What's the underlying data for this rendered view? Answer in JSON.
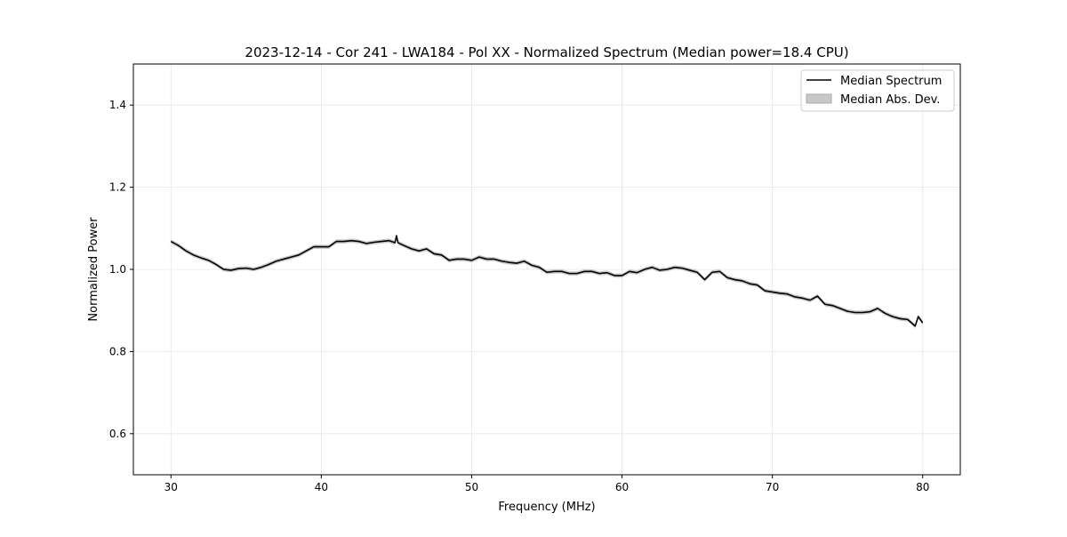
{
  "chart_data": {
    "type": "line",
    "title": "2023-12-14 - Cor 241 - LWA184 - Pol XX - Normalized Spectrum (Median power=18.4 CPU)",
    "xlabel": "Frequency (MHz)",
    "ylabel": "Normalized Power",
    "xlim": [
      27.5,
      82.5
    ],
    "ylim": [
      0.5,
      1.5
    ],
    "xticks": [
      30,
      40,
      50,
      60,
      70,
      80
    ],
    "yticks": [
      0.6,
      0.8,
      1.0,
      1.2,
      1.4
    ],
    "xtick_labels": [
      "30",
      "40",
      "50",
      "60",
      "70",
      "80"
    ],
    "ytick_labels": [
      "0.6",
      "0.8",
      "1.0",
      "1.2",
      "1.4"
    ],
    "grid": true,
    "legend_position": "top-right",
    "legend": [
      "Median Spectrum",
      "Median Abs. Dev."
    ],
    "mad_halfwidth": 0.005,
    "colors": {
      "line": "#000000",
      "band": "#c8c8c8",
      "grid": "#e6e6e6"
    },
    "series": [
      {
        "name": "Median Spectrum",
        "x": [
          30,
          30.5,
          31,
          31.5,
          32,
          32.5,
          33,
          33.5,
          34,
          34.5,
          35,
          35.5,
          36,
          36.5,
          37,
          37.5,
          38,
          38.5,
          39,
          39.5,
          40,
          40.5,
          41,
          41.5,
          42,
          42.5,
          43,
          43.5,
          44,
          44.5,
          44.9,
          45,
          45.1,
          45.5,
          46,
          46.5,
          47,
          47.5,
          48,
          48.5,
          49,
          49.5,
          50,
          50.5,
          51,
          51.5,
          52,
          52.5,
          53,
          53.5,
          54,
          54.5,
          55,
          55.5,
          56,
          56.5,
          57,
          57.5,
          58,
          58.5,
          59,
          59.5,
          60,
          60.5,
          61,
          61.5,
          62,
          62.5,
          63,
          63.5,
          64,
          64.5,
          65,
          65.5,
          66,
          66.5,
          67,
          67.5,
          68,
          68.5,
          69,
          69.5,
          70,
          70.5,
          71,
          71.5,
          72,
          72.5,
          73,
          73.5,
          74,
          74.5,
          75,
          75.5,
          76,
          76.5,
          77,
          77.5,
          78,
          78.5,
          79,
          79.5,
          79.7,
          80
        ],
        "y": [
          1.068,
          1.058,
          1.045,
          1.035,
          1.028,
          1.022,
          1.012,
          1.0,
          0.998,
          1.002,
          1.003,
          1.0,
          1.005,
          1.012,
          1.02,
          1.025,
          1.03,
          1.035,
          1.045,
          1.055,
          1.055,
          1.055,
          1.068,
          1.068,
          1.07,
          1.068,
          1.063,
          1.066,
          1.068,
          1.07,
          1.065,
          1.082,
          1.065,
          1.058,
          1.05,
          1.045,
          1.05,
          1.038,
          1.035,
          1.022,
          1.025,
          1.025,
          1.022,
          1.03,
          1.025,
          1.025,
          1.02,
          1.017,
          1.015,
          1.02,
          1.01,
          1.005,
          0.993,
          0.995,
          0.995,
          0.99,
          0.99,
          0.995,
          0.995,
          0.99,
          0.992,
          0.985,
          0.985,
          0.995,
          0.992,
          1.0,
          1.005,
          0.998,
          1.0,
          1.005,
          1.003,
          0.998,
          0.993,
          0.975,
          0.993,
          0.995,
          0.98,
          0.975,
          0.972,
          0.965,
          0.962,
          0.948,
          0.945,
          0.942,
          0.94,
          0.933,
          0.93,
          0.925,
          0.935,
          0.915,
          0.912,
          0.905,
          0.898,
          0.895,
          0.895,
          0.897,
          0.905,
          0.893,
          0.885,
          0.88,
          0.878,
          0.862,
          0.885,
          0.87
        ]
      }
    ]
  }
}
